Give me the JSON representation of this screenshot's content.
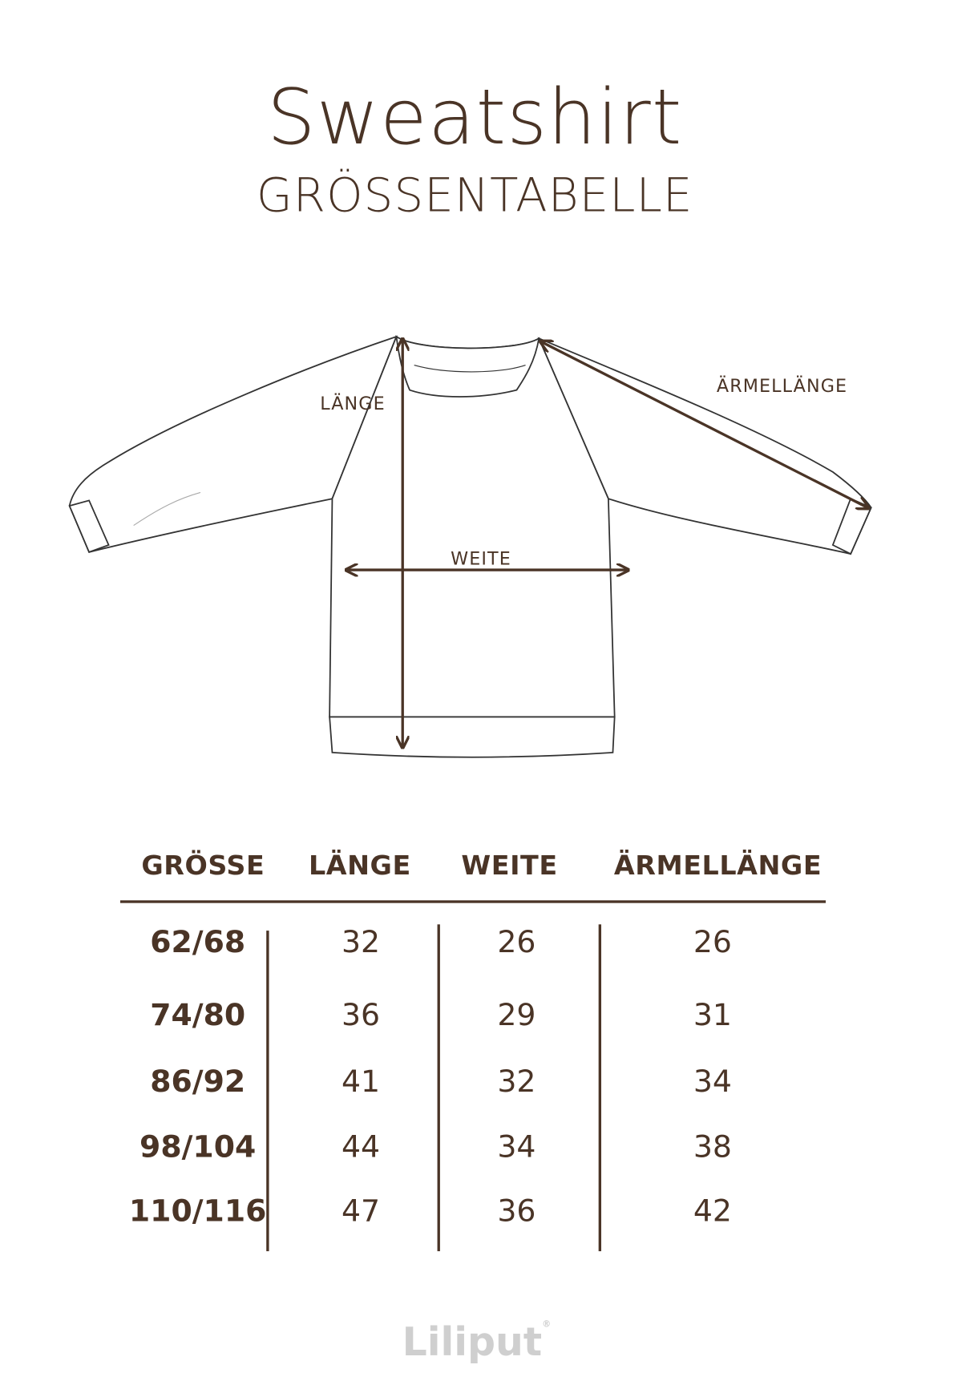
{
  "header": {
    "title": "Sweatshirt",
    "subtitle": "GRÖSSENTABELLE"
  },
  "diagram": {
    "labels": {
      "length": "LÄNGE",
      "width": "WEITE",
      "sleeve": "ÄRMELLÄNGE"
    }
  },
  "table": {
    "columns": [
      "GRÖSSE",
      "LÄNGE",
      "WEITE",
      "ÄRMELLÄNGE"
    ],
    "rows": [
      [
        "62/68",
        "32",
        "26",
        "26"
      ],
      [
        "74/80",
        "36",
        "29",
        "31"
      ],
      [
        "86/92",
        "41",
        "32",
        "34"
      ],
      [
        "98/104",
        "44",
        "34",
        "38"
      ],
      [
        "110/116",
        "47",
        "36",
        "42"
      ]
    ]
  },
  "footer": {
    "logo": "Liliput",
    "logo_mark": "®"
  },
  "colors": {
    "text": "#4a3426",
    "logo": "#cfcfcf"
  }
}
